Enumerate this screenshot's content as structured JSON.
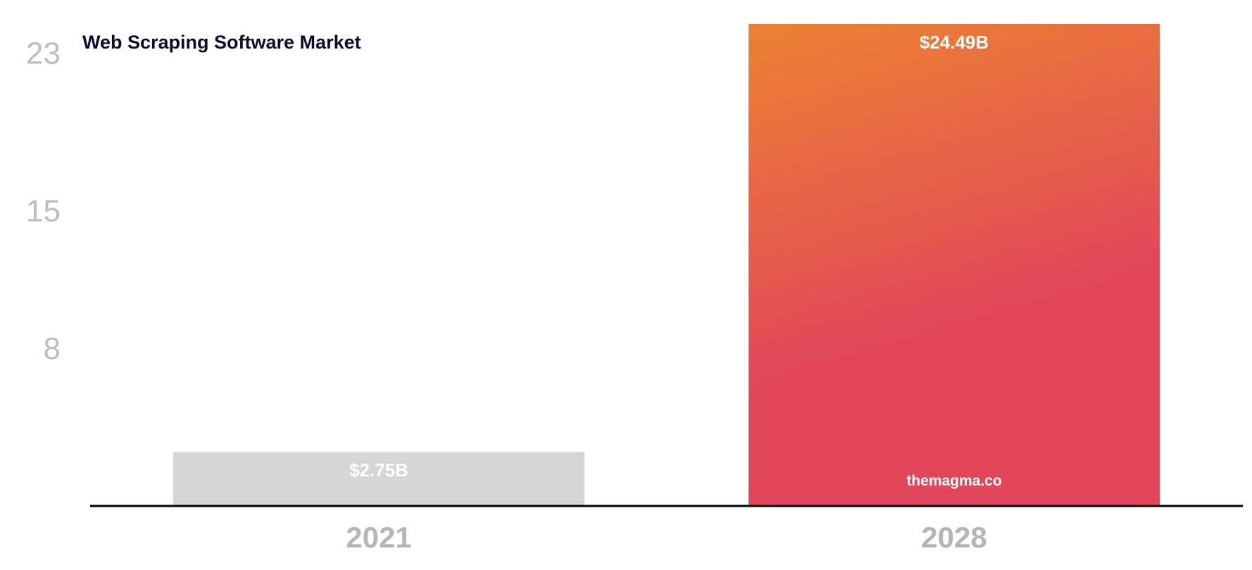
{
  "chart_data": {
    "type": "bar",
    "title": "Web Scraping Software Market",
    "categories": [
      "2021",
      "2028"
    ],
    "values": [
      2.75,
      24.49
    ],
    "data_labels": [
      "$2.75B",
      "$24.49B"
    ],
    "y_ticks": [
      8,
      15,
      23
    ],
    "ylim": [
      0,
      24.49
    ],
    "xlabel": "",
    "ylabel": "",
    "grid": false,
    "legend": "none",
    "watermark": "themagma.co",
    "colors": {
      "bar_2021": "#d5d5d5",
      "bar_2028_top": "#ec8232",
      "bar_2028_bottom": "#e2465a",
      "axis_line": "#000000",
      "tick_text": "#bdbdbd",
      "title_text": "#0b0b2b"
    }
  }
}
